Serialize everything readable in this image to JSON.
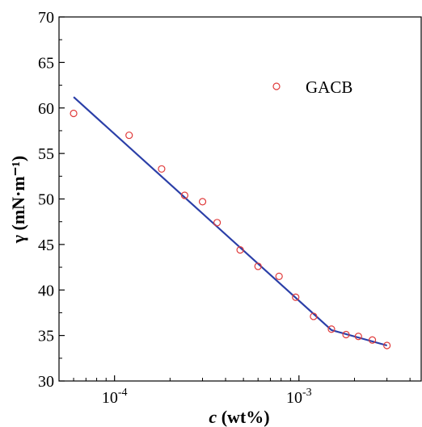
{
  "chart_data": {
    "type": "scatter",
    "xlabel": "c (wt%)",
    "ylabel": "γ (mN·m⁻¹)",
    "x_scale": "log",
    "xlim": [
      5e-05,
      0.0046
    ],
    "ylim": [
      30,
      70
    ],
    "y_ticks": [
      30,
      35,
      40,
      45,
      50,
      55,
      60,
      65,
      70
    ],
    "x_ticks": [
      0.0001,
      0.001
    ],
    "x_tick_labels": [
      "10",
      "10"
    ],
    "x_tick_exponents": [
      "-4",
      "-3"
    ],
    "grid": false,
    "legend": {
      "position": "top-right"
    },
    "series": [
      {
        "name": "GACB",
        "marker": "open-circle",
        "color": "#e03a3a",
        "points": [
          {
            "x": 6e-05,
            "y": 59.4
          },
          {
            "x": 0.00012,
            "y": 57.0
          },
          {
            "x": 0.00018,
            "y": 53.3
          },
          {
            "x": 0.00024,
            "y": 50.4
          },
          {
            "x": 0.0003,
            "y": 49.7
          },
          {
            "x": 0.00036,
            "y": 47.4
          },
          {
            "x": 0.00048,
            "y": 44.4
          },
          {
            "x": 0.0006,
            "y": 42.6
          },
          {
            "x": 0.00078,
            "y": 41.5
          },
          {
            "x": 0.00096,
            "y": 39.2
          },
          {
            "x": 0.0012,
            "y": 37.1
          },
          {
            "x": 0.0015,
            "y": 35.7
          },
          {
            "x": 0.0018,
            "y": 35.1
          },
          {
            "x": 0.0021,
            "y": 34.9
          },
          {
            "x": 0.0025,
            "y": 34.5
          },
          {
            "x": 0.003,
            "y": 33.9
          }
        ]
      },
      {
        "name": "",
        "type": "line",
        "color": "#2b3fa8",
        "points": [
          {
            "x": 6e-05,
            "y": 61.2
          },
          {
            "x": 0.0015,
            "y": 35.6
          },
          {
            "x": 0.003,
            "y": 33.9
          }
        ]
      }
    ]
  }
}
